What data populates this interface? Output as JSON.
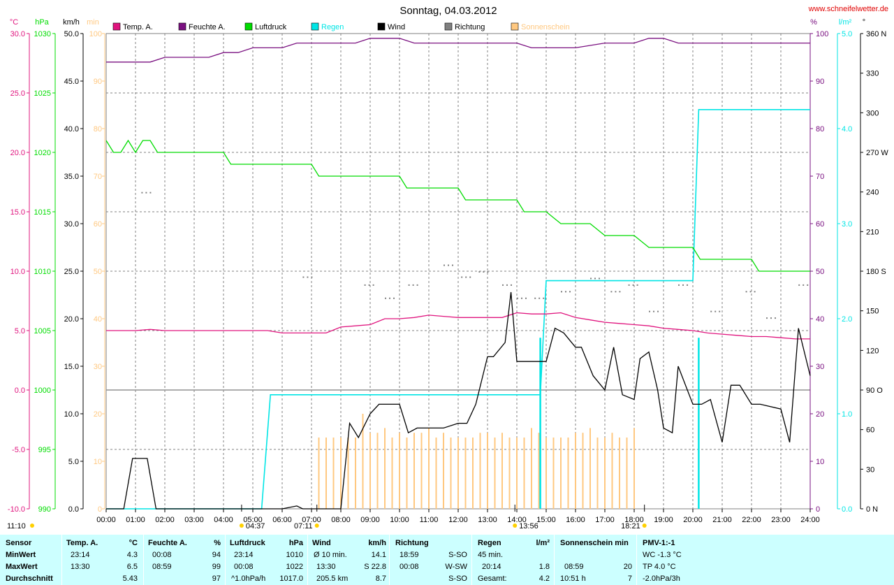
{
  "title": "Sonntag, 04.03.2012",
  "site": "www.schneifelwetter.de",
  "units_left": [
    "°C",
    "hPa",
    "km/h",
    "min"
  ],
  "units_right": [
    "%",
    "l/m²",
    "°"
  ],
  "legend": [
    {
      "label": "Temp. A.",
      "color": "#e0147e"
    },
    {
      "label": "Feuchte A.",
      "color": "#7a1080"
    },
    {
      "label": "Luftdruck",
      "color": "#00dc00"
    },
    {
      "label": "Regen",
      "color": "#00e5e5"
    },
    {
      "label": "Wind",
      "color": "#000000"
    },
    {
      "label": "Richtung",
      "color": "#808080"
    },
    {
      "label": "Sonnenschein",
      "color": "#ffc880"
    }
  ],
  "axis_temp": [
    "30.0",
    "25.0",
    "20.0",
    "15.0",
    "10.0",
    "5.0",
    "0.0",
    "-5.0",
    "-10.0"
  ],
  "axis_press": [
    "1030",
    "1025",
    "1020",
    "1015",
    "1010",
    "1005",
    "1000",
    "995",
    "990"
  ],
  "axis_wind": [
    "50.0",
    "45.0",
    "40.0",
    "35.0",
    "30.0",
    "25.0",
    "20.0",
    "15.0",
    "10.0",
    "5.0",
    "0.0"
  ],
  "axis_sun": [
    "100",
    "90",
    "80",
    "70",
    "60",
    "50",
    "40",
    "30",
    "20",
    "10",
    "0"
  ],
  "axis_hum": [
    "100",
    "90",
    "80",
    "70",
    "60",
    "50",
    "40",
    "30",
    "20",
    "10",
    "0"
  ],
  "axis_rain": [
    "5.0",
    "4.0",
    "3.0",
    "2.0",
    "1.0",
    "0.0"
  ],
  "axis_dir": [
    "360 N",
    "330",
    "300",
    "270 W",
    "240",
    "210",
    "180 S",
    "150",
    "120",
    "90 O",
    "60",
    "30",
    "0 N"
  ],
  "x_ticks": [
    "00:00",
    "01:00",
    "02:00",
    "03:00",
    "04:00",
    "05:00",
    "06:00",
    "07:00",
    "08:00",
    "09:00",
    "10:00",
    "11:00",
    "12:00",
    "13:00",
    "14:00",
    "15:00",
    "16:00",
    "17:00",
    "18:00",
    "19:00",
    "20:00",
    "21:00",
    "22:00",
    "23:00",
    "24:00"
  ],
  "events": {
    "moonset": "04:37",
    "sunrise": "07:11",
    "moonrise": "13:56",
    "sunset": "18:21",
    "moon_left": "11:10"
  },
  "colors": {
    "temp": "#e0147e",
    "hum": "#7a1080",
    "press": "#00dc00",
    "rain": "#00e5e5",
    "wind": "#000000",
    "dir": "#808080",
    "sun": "#ffc880",
    "stats_bg": "#ccffff"
  },
  "chart_data": {
    "type": "line",
    "title": "Sonntag, 04.03.2012",
    "x_range": [
      "00:00",
      "24:00"
    ],
    "grid": true,
    "legend_position": "top",
    "series": [
      {
        "name": "Temp. A.",
        "unit": "°C",
        "x": [
          0,
          1,
          1.5,
          2,
          3,
          4,
          5,
          5.5,
          6,
          7,
          7.5,
          8,
          8.5,
          9,
          9.5,
          10,
          10.5,
          11,
          11.5,
          12,
          12.5,
          13,
          13.5,
          14,
          14.5,
          15,
          15.5,
          16,
          16.5,
          17,
          17.5,
          18,
          18.5,
          19,
          19.5,
          20,
          20.5,
          21,
          21.5,
          22,
          22.5,
          23,
          23.5,
          24
        ],
        "y": [
          5.0,
          5.0,
          5.1,
          5.0,
          5.0,
          5.0,
          5.0,
          5.0,
          4.8,
          4.8,
          4.8,
          5.3,
          5.4,
          5.5,
          6.0,
          6.0,
          6.1,
          6.3,
          6.2,
          6.1,
          6.1,
          6.1,
          6.1,
          6.5,
          6.4,
          6.4,
          6.5,
          6.1,
          5.9,
          5.7,
          5.6,
          5.5,
          5.4,
          5.2,
          5.1,
          5.0,
          4.8,
          4.7,
          4.6,
          4.5,
          4.5,
          4.4,
          4.3,
          4.3
        ]
      },
      {
        "name": "Feuchte A.",
        "unit": "%",
        "x": [
          0,
          1,
          1.5,
          2,
          3,
          3.5,
          4,
          4.5,
          5,
          5.5,
          6,
          6.5,
          7,
          8,
          8.5,
          9,
          9.5,
          10,
          10.5,
          11,
          12,
          13,
          14,
          14.5,
          15,
          16,
          17,
          17.5,
          18,
          18.5,
          19,
          19.5,
          20,
          21,
          22,
          23,
          24
        ],
        "y": [
          94,
          94,
          94,
          95,
          95,
          95,
          96,
          96,
          97,
          97,
          97,
          98,
          98,
          98,
          98,
          99,
          99,
          99,
          98,
          98,
          98,
          98,
          98,
          97,
          97,
          97,
          98,
          98,
          98,
          99,
          99,
          98,
          98,
          98,
          98,
          98,
          98
        ]
      },
      {
        "name": "Luftdruck",
        "unit": "hPa",
        "x": [
          0,
          0.25,
          0.5,
          0.75,
          1.0,
          1.25,
          1.5,
          1.75,
          2.0,
          3.0,
          4.0,
          4.25,
          5,
          6,
          7,
          7.25,
          8,
          9,
          10,
          10.25,
          11,
          12,
          12.25,
          13,
          14,
          14.25,
          15,
          15.5,
          16,
          16.5,
          17,
          17.5,
          18,
          18.5,
          19,
          20,
          20.25,
          21,
          22,
          22.25,
          23,
          23.25,
          24
        ],
        "y": [
          1021,
          1020,
          1020,
          1021,
          1020,
          1021,
          1021,
          1020,
          1020,
          1020,
          1020,
          1019,
          1019,
          1019,
          1019,
          1018,
          1018,
          1018,
          1018,
          1017,
          1017,
          1017,
          1016,
          1016,
          1016,
          1015,
          1015,
          1014,
          1014,
          1014,
          1013,
          1013,
          1013,
          1012,
          1012,
          1012,
          1011,
          1011,
          1011,
          1010,
          1010,
          1010,
          1010
        ]
      },
      {
        "name": "Regen",
        "unit": "l/m²",
        "x": [
          0,
          5.3,
          5.6,
          14.8,
          15.0,
          20.0,
          20.2,
          24
        ],
        "y": [
          0,
          0,
          1.2,
          1.2,
          2.4,
          2.4,
          4.2,
          4.2
        ]
      },
      {
        "name": "Wind",
        "unit": "km/h",
        "x": [
          0,
          0.6,
          0.9,
          1.4,
          1.7,
          2,
          3,
          4,
          5,
          6,
          6.5,
          6.7,
          7,
          8,
          8.3,
          8.6,
          9,
          9.3,
          9.7,
          10,
          10.3,
          10.6,
          11,
          11.5,
          12,
          12.3,
          12.6,
          13,
          13.2,
          13.6,
          13.8,
          14,
          14.3,
          15,
          15.3,
          15.6,
          16,
          16.2,
          16.6,
          17,
          17.3,
          17.6,
          18,
          18.2,
          18.5,
          18.8,
          19,
          19.3,
          19.5,
          20,
          20.3,
          20.6,
          21,
          21.3,
          21.6,
          22,
          22.3,
          23,
          23.3,
          23.6,
          24
        ],
        "y": [
          0,
          0,
          5.3,
          5.3,
          0,
          0,
          0,
          0,
          0,
          0,
          0.3,
          0,
          0,
          0,
          9.0,
          7.5,
          10.0,
          11.0,
          11.0,
          11.0,
          8.0,
          8.5,
          8.5,
          8.5,
          9.0,
          9.0,
          11.0,
          16.0,
          16.0,
          17.5,
          22.8,
          15.5,
          15.5,
          15.5,
          19.0,
          18.5,
          17.0,
          17.0,
          14.0,
          12.5,
          17.0,
          12.0,
          11.5,
          15.8,
          16.5,
          12.5,
          8.5,
          8.0,
          15.0,
          11.0,
          11.0,
          11.5,
          7.0,
          13.0,
          13.0,
          11.0,
          11.0,
          10.5,
          7.0,
          19.0,
          14.0
        ]
      },
      {
        "name": "Sonnenschein",
        "unit": "min",
        "type": "bar",
        "x": [
          7.25,
          7.5,
          7.75,
          8.0,
          8.25,
          8.5,
          8.75,
          9.0,
          9.25,
          9.5,
          9.75,
          10.0,
          10.25,
          10.5,
          10.75,
          11.0,
          11.25,
          11.5,
          11.75,
          12.0,
          12.25,
          12.5,
          12.75,
          13.0,
          13.25,
          13.5,
          13.75,
          14.0,
          14.25,
          14.5,
          14.75,
          15.0,
          15.25,
          15.5,
          15.75,
          16.0,
          16.25,
          16.5,
          16.75,
          17.0,
          17.25,
          17.5,
          17.75,
          18.0
        ],
        "y": [
          15,
          15,
          15,
          15,
          15,
          15,
          20,
          16,
          16,
          17,
          15,
          16,
          15,
          16,
          16,
          17,
          15,
          16,
          15,
          15,
          15,
          15,
          16,
          16,
          15,
          16,
          15,
          15,
          15,
          17,
          16,
          15,
          15,
          15,
          15,
          16,
          16,
          17,
          15,
          15,
          16,
          15,
          15,
          17
        ]
      }
    ],
    "direction_points": [
      {
        "x": 1.2,
        "deg": 240
      },
      {
        "x": 6.7,
        "deg": 176
      },
      {
        "x": 8.8,
        "deg": 170
      },
      {
        "x": 9.5,
        "deg": 160
      },
      {
        "x": 10.3,
        "deg": 170
      },
      {
        "x": 11.5,
        "deg": 185
      },
      {
        "x": 12.1,
        "deg": 176
      },
      {
        "x": 12.7,
        "deg": 180
      },
      {
        "x": 13.5,
        "deg": 170
      },
      {
        "x": 14.0,
        "deg": 160
      },
      {
        "x": 14.6,
        "deg": 160
      },
      {
        "x": 15.5,
        "deg": 165
      },
      {
        "x": 16.5,
        "deg": 175
      },
      {
        "x": 17.2,
        "deg": 165
      },
      {
        "x": 17.8,
        "deg": 170
      },
      {
        "x": 18.5,
        "deg": 150
      },
      {
        "x": 19.5,
        "deg": 170
      },
      {
        "x": 20.6,
        "deg": 150
      },
      {
        "x": 21.8,
        "deg": 165
      },
      {
        "x": 22.5,
        "deg": 145
      },
      {
        "x": 23.6,
        "deg": 170
      }
    ]
  },
  "stats": {
    "sensor": {
      "header": "Sensor",
      "rows": [
        "MinWert",
        "MaxWert",
        "Durchschnitt"
      ]
    },
    "temp": {
      "header": "Temp. A.",
      "unit": "°C",
      "r1": [
        "23:14",
        "4.3"
      ],
      "r2": [
        "13:30",
        "6.5"
      ],
      "r3": [
        "",
        "5.43"
      ]
    },
    "hum": {
      "header": "Feuchte A.",
      "unit": "%",
      "r1": [
        "00:08",
        "94"
      ],
      "r2": [
        "08:59",
        "99"
      ],
      "r3": [
        "",
        "97"
      ]
    },
    "press": {
      "header": "Luftdruck",
      "unit": "hPa",
      "r1": [
        "23:14",
        "1010"
      ],
      "r2": [
        "00:08",
        "1022"
      ],
      "r3": [
        "^1.0hPa/h",
        "1017.0"
      ]
    },
    "wind": {
      "header": "Wind",
      "unit": "km/h",
      "r1": [
        "Ø 10 min.",
        "14.1"
      ],
      "r2": [
        "13:30",
        "S 22.8"
      ],
      "r3": [
        "205.5 km",
        "8.7"
      ]
    },
    "dir": {
      "header": "Richtung",
      "unit": "",
      "r1": [
        "18:59",
        "S-SO"
      ],
      "r2": [
        "00:08",
        "W-SW"
      ],
      "r3": [
        "",
        "S-SO"
      ]
    },
    "rain": {
      "header": "Regen",
      "unit": "l/m²",
      "r1": [
        "45 min.",
        ""
      ],
      "r2": [
        "20:14",
        "1.8"
      ],
      "r3": [
        "Gesamt:",
        "4.2"
      ]
    },
    "sun": {
      "header": "Sonnenschein min",
      "unit": "",
      "r1": [
        "",
        ""
      ],
      "r2": [
        "08:59",
        "20"
      ],
      "r3": [
        "10:51 h",
        "7"
      ]
    },
    "pmv": {
      "header": "PMV-1:-1",
      "r1": "WC -1.3 °C",
      "r2": "TP 4.0 °C",
      "r3": "-2.0hPa/3h"
    }
  }
}
